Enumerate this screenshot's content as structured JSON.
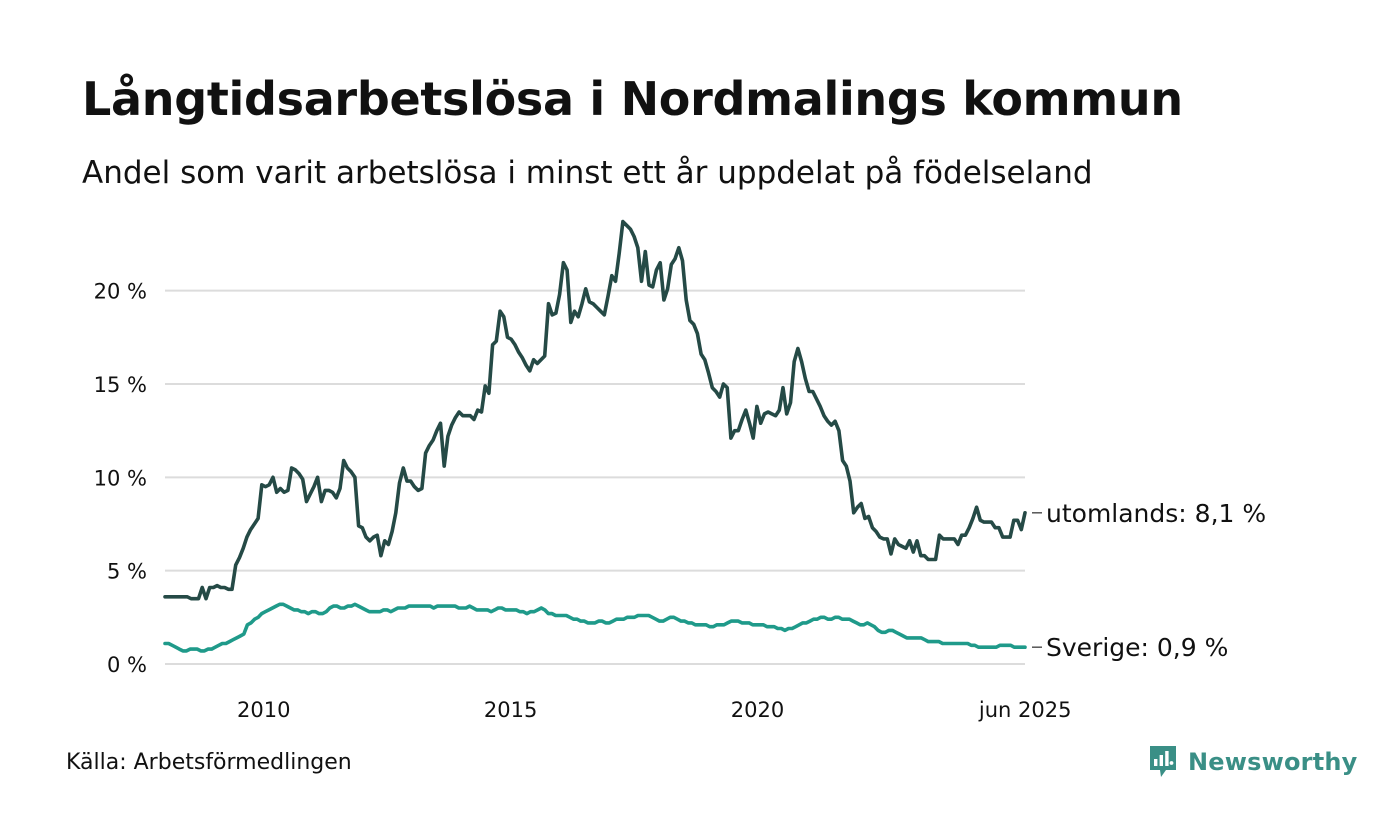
{
  "title": "Långtidsarbetslösa i Nordmalings kommun",
  "subtitle": "Andel som varit arbetslösa i minst ett år uppdelat på födelseland",
  "source": "Källa: Arbetsförmedlingen",
  "brand": {
    "name": "Newsworthy",
    "icon": "newsworthy-logo-icon",
    "color": "#3a8f86"
  },
  "chart_data": {
    "type": "line",
    "x_start": "2008-01",
    "x_end": "2025-06",
    "x_ticks": [
      {
        "year": 2010,
        "label": "2010"
      },
      {
        "year": 2015,
        "label": "2015"
      },
      {
        "year": 2020,
        "label": "2020"
      },
      {
        "year": 2025.42,
        "label": "jun 2025"
      }
    ],
    "y_ticks": [
      {
        "value": 0,
        "label": "0 %"
      },
      {
        "value": 5,
        "label": "5 %"
      },
      {
        "value": 10,
        "label": "10 %"
      },
      {
        "value": 15,
        "label": "15 %"
      },
      {
        "value": 20,
        "label": "20 %"
      }
    ],
    "ylim": [
      0,
      24
    ],
    "grid": true,
    "series": [
      {
        "label": "utomlands: 8,1 %",
        "color": "#254a46",
        "values": [
          3.6,
          3.6,
          3.6,
          3.6,
          3.6,
          3.6,
          3.6,
          3.5,
          3.5,
          3.5,
          4.1,
          3.5,
          4.1,
          4.1,
          4.2,
          4.1,
          4.1,
          4,
          4,
          5.3,
          5.7,
          6.2,
          6.8,
          7.2,
          7.5,
          7.8,
          9.6,
          9.5,
          9.6,
          10,
          9.2,
          9.4,
          9.2,
          9.3,
          10.5,
          10.4,
          10.2,
          9.9,
          8.7,
          9.1,
          9.5,
          10,
          8.7,
          9.3,
          9.3,
          9.2,
          8.9,
          9.4,
          10.9,
          10.5,
          10.3,
          10,
          7.4,
          7.3,
          6.8,
          6.6,
          6.8,
          6.9,
          5.8,
          6.6,
          6.4,
          7.1,
          8.1,
          9.7,
          10.5,
          9.8,
          9.8,
          9.5,
          9.3,
          9.4,
          11.3,
          11.7,
          12,
          12.5,
          12.9,
          10.6,
          12.2,
          12.8,
          13.2,
          13.5,
          13.3,
          13.3,
          13.3,
          13.1,
          13.6,
          13.5,
          14.9,
          14.5,
          17.1,
          17.3,
          18.9,
          18.6,
          17.5,
          17.4,
          17.1,
          16.7,
          16.4,
          16,
          15.7,
          16.3,
          16.1,
          16.3,
          16.5,
          19.3,
          18.7,
          18.8,
          19.8,
          21.5,
          21.1,
          18.3,
          18.9,
          18.6,
          19.3,
          20.1,
          19.4,
          19.3,
          19.1,
          18.9,
          18.7,
          19.7,
          20.8,
          20.5,
          22,
          23.7,
          23.5,
          23.3,
          22.9,
          22.3,
          20.5,
          22.1,
          20.3,
          20.2,
          21.1,
          21.5,
          19.5,
          20.1,
          21.4,
          21.7,
          22.3,
          21.6,
          19.5,
          18.4,
          18.2,
          17.7,
          16.6,
          16.3,
          15.6,
          14.8,
          14.6,
          14.3,
          15,
          14.8,
          12.1,
          12.5,
          12.5,
          13.1,
          13.6,
          12.9,
          12.1,
          13.8,
          12.9,
          13.4,
          13.5,
          13.4,
          13.3,
          13.6,
          14.8,
          13.4,
          14,
          16.2,
          16.9,
          16.2,
          15.3,
          14.6,
          14.6,
          14.2,
          13.8,
          13.3,
          13,
          12.8,
          13,
          12.5,
          10.9,
          10.6,
          9.8,
          8.1,
          8.4,
          8.6,
          7.8,
          7.9,
          7.3,
          7.1,
          6.8,
          6.7,
          6.7,
          5.9,
          6.7,
          6.4,
          6.3,
          6.2,
          6.6,
          6,
          6.6,
          5.8,
          5.8,
          5.6,
          5.6,
          5.6,
          6.9,
          6.7,
          6.7,
          6.7,
          6.7,
          6.4,
          6.9,
          6.9,
          7.3,
          7.8,
          8.4,
          7.7,
          7.6,
          7.6,
          7.6,
          7.3,
          7.3,
          6.8,
          6.8,
          6.8,
          7.7,
          7.7,
          7.2,
          8.1
        ]
      },
      {
        "label": "Sverige: 0,9 %",
        "color": "#1f9a8a",
        "values": [
          1.1,
          1.1,
          1,
          0.9,
          0.8,
          0.7,
          0.7,
          0.8,
          0.8,
          0.8,
          0.7,
          0.7,
          0.8,
          0.8,
          0.9,
          1,
          1.1,
          1.1,
          1.2,
          1.3,
          1.4,
          1.5,
          1.6,
          2.1,
          2.2,
          2.4,
          2.5,
          2.7,
          2.8,
          2.9,
          3,
          3.1,
          3.2,
          3.2,
          3.1,
          3,
          2.9,
          2.9,
          2.8,
          2.8,
          2.7,
          2.8,
          2.8,
          2.7,
          2.7,
          2.8,
          3,
          3.1,
          3.1,
          3,
          3,
          3.1,
          3.1,
          3.2,
          3.1,
          3,
          2.9,
          2.8,
          2.8,
          2.8,
          2.8,
          2.9,
          2.9,
          2.8,
          2.9,
          3,
          3,
          3,
          3.1,
          3.1,
          3.1,
          3.1,
          3.1,
          3.1,
          3.1,
          3,
          3.1,
          3.1,
          3.1,
          3.1,
          3.1,
          3.1,
          3,
          3,
          3,
          3.1,
          3,
          2.9,
          2.9,
          2.9,
          2.9,
          2.8,
          2.9,
          3,
          3,
          2.9,
          2.9,
          2.9,
          2.9,
          2.8,
          2.8,
          2.7,
          2.8,
          2.8,
          2.9,
          3,
          2.9,
          2.7,
          2.7,
          2.6,
          2.6,
          2.6,
          2.6,
          2.5,
          2.4,
          2.4,
          2.3,
          2.3,
          2.2,
          2.2,
          2.2,
          2.3,
          2.3,
          2.2,
          2.2,
          2.3,
          2.4,
          2.4,
          2.4,
          2.5,
          2.5,
          2.5,
          2.6,
          2.6,
          2.6,
          2.6,
          2.5,
          2.4,
          2.3,
          2.3,
          2.4,
          2.5,
          2.5,
          2.4,
          2.3,
          2.3,
          2.2,
          2.2,
          2.1,
          2.1,
          2.1,
          2.1,
          2,
          2,
          2.1,
          2.1,
          2.1,
          2.2,
          2.3,
          2.3,
          2.3,
          2.2,
          2.2,
          2.2,
          2.1,
          2.1,
          2.1,
          2.1,
          2,
          2,
          2,
          1.9,
          1.9,
          1.8,
          1.9,
          1.9,
          2,
          2.1,
          2.2,
          2.2,
          2.3,
          2.4,
          2.4,
          2.5,
          2.5,
          2.4,
          2.4,
          2.5,
          2.5,
          2.4,
          2.4,
          2.4,
          2.3,
          2.2,
          2.1,
          2.1,
          2.2,
          2.1,
          2,
          1.8,
          1.7,
          1.7,
          1.8,
          1.8,
          1.7,
          1.6,
          1.5,
          1.4,
          1.4,
          1.4,
          1.4,
          1.4,
          1.3,
          1.2,
          1.2,
          1.2,
          1.2,
          1.1,
          1.1,
          1.1,
          1.1,
          1.1,
          1.1,
          1.1,
          1.1,
          1,
          1,
          0.9,
          0.9,
          0.9,
          0.9,
          0.9,
          0.9,
          1,
          1,
          1,
          1,
          0.9,
          0.9,
          0.9,
          0.9
        ]
      }
    ]
  }
}
